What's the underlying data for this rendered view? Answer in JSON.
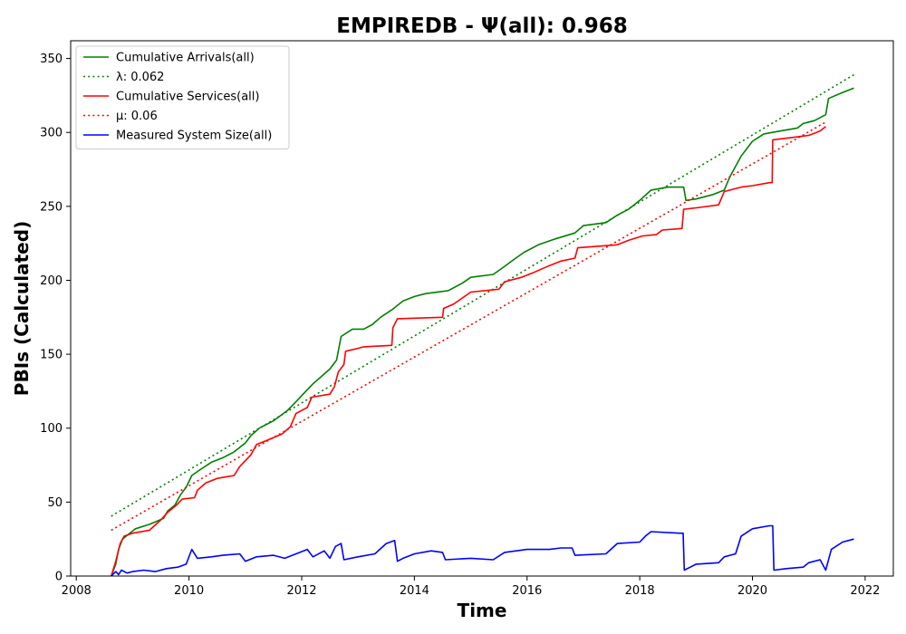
{
  "chart_data": {
    "type": "line",
    "title": "EMPIREDB -  Ψ(all): 0.968",
    "xlabel": "Time",
    "ylabel": "PBIs (Calculated)",
    "xlim": [
      2007.9,
      2022.5
    ],
    "ylim": [
      0,
      362
    ],
    "xticks": [
      2008,
      2010,
      2012,
      2014,
      2016,
      2018,
      2020,
      2022
    ],
    "yticks": [
      0,
      50,
      100,
      150,
      200,
      250,
      300,
      350
    ],
    "grid": false,
    "legend_position": "top-left",
    "series": [
      {
        "name": "Cumulative Arrivals(all)",
        "color": "#008000",
        "style": "solid",
        "points": [
          [
            2008.62,
            0
          ],
          [
            2008.7,
            8
          ],
          [
            2008.75,
            18
          ],
          [
            2008.82,
            25
          ],
          [
            2008.95,
            29
          ],
          [
            2009.05,
            32
          ],
          [
            2009.3,
            35
          ],
          [
            2009.55,
            39
          ],
          [
            2009.62,
            44
          ],
          [
            2009.75,
            48
          ],
          [
            2009.85,
            55
          ],
          [
            2009.95,
            60
          ],
          [
            2010.05,
            68
          ],
          [
            2010.2,
            72
          ],
          [
            2010.4,
            77
          ],
          [
            2010.6,
            80
          ],
          [
            2010.8,
            84
          ],
          [
            2011.0,
            90
          ],
          [
            2011.1,
            95
          ],
          [
            2011.25,
            100
          ],
          [
            2011.5,
            105
          ],
          [
            2011.75,
            112
          ],
          [
            2011.9,
            118
          ],
          [
            2012.0,
            122
          ],
          [
            2012.2,
            130
          ],
          [
            2012.35,
            135
          ],
          [
            2012.5,
            140
          ],
          [
            2012.62,
            146
          ],
          [
            2012.7,
            162
          ],
          [
            2012.9,
            167
          ],
          [
            2013.1,
            167
          ],
          [
            2013.25,
            170
          ],
          [
            2013.4,
            175
          ],
          [
            2013.6,
            180
          ],
          [
            2013.8,
            186
          ],
          [
            2014.0,
            189
          ],
          [
            2014.2,
            191
          ],
          [
            2014.6,
            193
          ],
          [
            2014.85,
            198
          ],
          [
            2015.0,
            202
          ],
          [
            2015.4,
            204
          ],
          [
            2015.55,
            208
          ],
          [
            2015.8,
            215
          ],
          [
            2015.95,
            219
          ],
          [
            2016.2,
            224
          ],
          [
            2016.5,
            228
          ],
          [
            2016.85,
            232
          ],
          [
            2017.0,
            237
          ],
          [
            2017.4,
            239
          ],
          [
            2017.6,
            244
          ],
          [
            2017.8,
            248
          ],
          [
            2018.0,
            254
          ],
          [
            2018.2,
            261
          ],
          [
            2018.5,
            263
          ],
          [
            2018.78,
            263
          ],
          [
            2018.82,
            254
          ],
          [
            2019.0,
            255
          ],
          [
            2019.3,
            258
          ],
          [
            2019.5,
            261
          ],
          [
            2019.6,
            270
          ],
          [
            2019.8,
            284
          ],
          [
            2020.0,
            294
          ],
          [
            2020.2,
            299
          ],
          [
            2020.5,
            301
          ],
          [
            2020.8,
            303
          ],
          [
            2020.9,
            306
          ],
          [
            2021.1,
            308
          ],
          [
            2021.3,
            312
          ],
          [
            2021.35,
            323
          ],
          [
            2021.6,
            327
          ],
          [
            2021.8,
            330
          ]
        ]
      },
      {
        "name": "λ: 0.062",
        "color": "#008000",
        "style": "dotted",
        "points": [
          [
            2008.62,
            40.5
          ],
          [
            2021.8,
            339
          ]
        ]
      },
      {
        "name": "Cumulative Services(all)",
        "color": "#ff0000",
        "style": "solid",
        "points": [
          [
            2008.62,
            0
          ],
          [
            2008.7,
            10
          ],
          [
            2008.78,
            22
          ],
          [
            2008.85,
            27
          ],
          [
            2009.0,
            29
          ],
          [
            2009.3,
            31
          ],
          [
            2009.5,
            38
          ],
          [
            2009.62,
            43
          ],
          [
            2009.78,
            48
          ],
          [
            2009.88,
            52
          ],
          [
            2010.1,
            53
          ],
          [
            2010.15,
            58
          ],
          [
            2010.3,
            63
          ],
          [
            2010.5,
            66
          ],
          [
            2010.8,
            68
          ],
          [
            2010.9,
            74
          ],
          [
            2011.1,
            82
          ],
          [
            2011.2,
            89
          ],
          [
            2011.4,
            92
          ],
          [
            2011.65,
            96
          ],
          [
            2011.8,
            101
          ],
          [
            2011.9,
            110
          ],
          [
            2012.1,
            114
          ],
          [
            2012.18,
            121
          ],
          [
            2012.5,
            123
          ],
          [
            2012.58,
            128
          ],
          [
            2012.65,
            138
          ],
          [
            2012.75,
            143
          ],
          [
            2012.78,
            152
          ],
          [
            2013.0,
            154
          ],
          [
            2013.1,
            155
          ],
          [
            2013.6,
            156
          ],
          [
            2013.62,
            168
          ],
          [
            2013.7,
            174
          ],
          [
            2014.5,
            175
          ],
          [
            2014.52,
            181
          ],
          [
            2014.7,
            184
          ],
          [
            2014.85,
            188
          ],
          [
            2015.0,
            192
          ],
          [
            2015.5,
            194
          ],
          [
            2015.6,
            199
          ],
          [
            2015.9,
            202
          ],
          [
            2016.1,
            205
          ],
          [
            2016.4,
            210
          ],
          [
            2016.6,
            213
          ],
          [
            2016.85,
            215
          ],
          [
            2016.9,
            222
          ],
          [
            2017.6,
            224
          ],
          [
            2017.8,
            227
          ],
          [
            2018.05,
            230
          ],
          [
            2018.3,
            231
          ],
          [
            2018.4,
            234
          ],
          [
            2018.75,
            235
          ],
          [
            2018.78,
            248
          ],
          [
            2019.0,
            249
          ],
          [
            2019.4,
            251
          ],
          [
            2019.5,
            260
          ],
          [
            2019.8,
            263
          ],
          [
            2020.0,
            264
          ],
          [
            2020.3,
            266
          ],
          [
            2020.35,
            266
          ],
          [
            2020.36,
            295
          ],
          [
            2020.8,
            297
          ],
          [
            2021.0,
            298
          ],
          [
            2021.2,
            301
          ],
          [
            2021.3,
            304
          ]
        ]
      },
      {
        "name": "μ: 0.06",
        "color": "#ff0000",
        "style": "dotted",
        "points": [
          [
            2008.62,
            31
          ],
          [
            2021.3,
            307
          ]
        ]
      },
      {
        "name": "Measured System Size(all)",
        "color": "#0000ff",
        "style": "solid",
        "points": [
          [
            2008.62,
            0
          ],
          [
            2008.7,
            3
          ],
          [
            2008.75,
            1
          ],
          [
            2008.8,
            4
          ],
          [
            2008.9,
            2
          ],
          [
            2009.0,
            3
          ],
          [
            2009.2,
            4
          ],
          [
            2009.4,
            3
          ],
          [
            2009.6,
            5
          ],
          [
            2009.8,
            6
          ],
          [
            2009.95,
            8
          ],
          [
            2010.05,
            18
          ],
          [
            2010.15,
            12
          ],
          [
            2010.4,
            13
          ],
          [
            2010.6,
            14
          ],
          [
            2010.9,
            15
          ],
          [
            2011.0,
            10
          ],
          [
            2011.2,
            13
          ],
          [
            2011.5,
            14
          ],
          [
            2011.7,
            12
          ],
          [
            2011.9,
            15
          ],
          [
            2012.1,
            18
          ],
          [
            2012.2,
            13
          ],
          [
            2012.4,
            17
          ],
          [
            2012.5,
            12
          ],
          [
            2012.6,
            20
          ],
          [
            2012.7,
            22
          ],
          [
            2012.75,
            11
          ],
          [
            2013.0,
            13
          ],
          [
            2013.3,
            15
          ],
          [
            2013.5,
            22
          ],
          [
            2013.65,
            24
          ],
          [
            2013.7,
            10
          ],
          [
            2013.8,
            12
          ],
          [
            2014.0,
            15
          ],
          [
            2014.3,
            17
          ],
          [
            2014.5,
            16
          ],
          [
            2014.55,
            11
          ],
          [
            2015.0,
            12
          ],
          [
            2015.4,
            11
          ],
          [
            2015.6,
            16
          ],
          [
            2016.0,
            18
          ],
          [
            2016.4,
            18
          ],
          [
            2016.6,
            19
          ],
          [
            2016.8,
            19
          ],
          [
            2016.85,
            14
          ],
          [
            2017.4,
            15
          ],
          [
            2017.6,
            22
          ],
          [
            2018.0,
            23
          ],
          [
            2018.1,
            27
          ],
          [
            2018.2,
            30
          ],
          [
            2018.7,
            29
          ],
          [
            2018.77,
            29
          ],
          [
            2018.79,
            4
          ],
          [
            2019.0,
            8
          ],
          [
            2019.4,
            9
          ],
          [
            2019.5,
            13
          ],
          [
            2019.7,
            15
          ],
          [
            2019.8,
            27
          ],
          [
            2020.0,
            32
          ],
          [
            2020.3,
            34
          ],
          [
            2020.36,
            34
          ],
          [
            2020.38,
            4
          ],
          [
            2020.6,
            5
          ],
          [
            2020.9,
            6
          ],
          [
            2021.0,
            9
          ],
          [
            2021.2,
            11
          ],
          [
            2021.3,
            4
          ],
          [
            2021.4,
            18
          ],
          [
            2021.6,
            23
          ],
          [
            2021.8,
            25
          ]
        ]
      }
    ]
  }
}
